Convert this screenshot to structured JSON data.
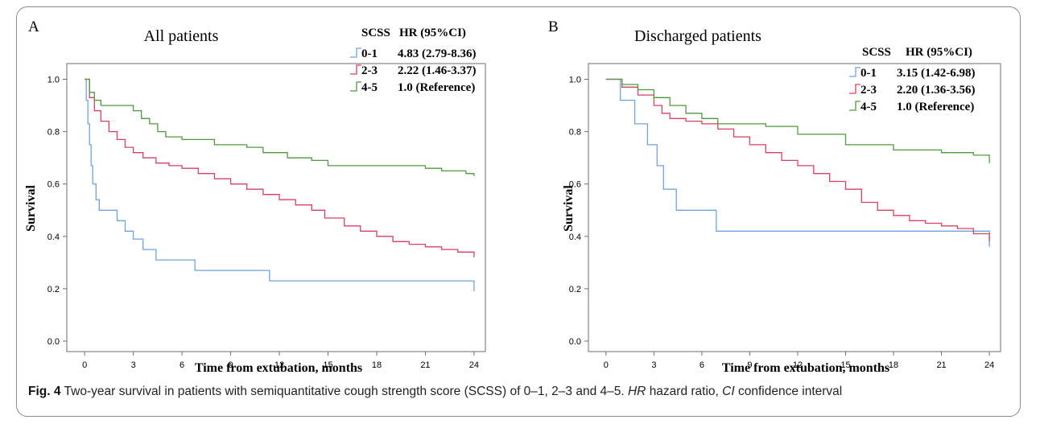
{
  "chart_data": [
    {
      "type": "line",
      "panel_label": "A",
      "title": "All patients",
      "xlabel": "Time from extubation, months",
      "ylabel": "Survival",
      "xlim": [
        -1,
        24.6
      ],
      "ylim": [
        -0.04,
        1.06
      ],
      "x_ticks": [
        0,
        3,
        6,
        9,
        12,
        15,
        18,
        21,
        24
      ],
      "y_ticks": [
        0.0,
        0.2,
        0.4,
        0.6,
        0.8,
        1.0
      ],
      "legend": {
        "placement": "top-right",
        "header_group": "SCSS",
        "header_hr": "HR (95%CI)"
      },
      "series": [
        {
          "name": "0-1",
          "hr": "4.83 (2.79-8.36)",
          "color": "#6fa3dc",
          "x": [
            0,
            0.1,
            0.2,
            0.3,
            0.4,
            0.5,
            0.7,
            0.9,
            1.3,
            2.0,
            2.5,
            3.0,
            3.6,
            4.4,
            6.8,
            11.4,
            24
          ],
          "y": [
            1.0,
            0.92,
            0.83,
            0.75,
            0.67,
            0.6,
            0.54,
            0.5,
            0.5,
            0.46,
            0.42,
            0.39,
            0.35,
            0.31,
            0.27,
            0.23,
            0.19
          ]
        },
        {
          "name": "2-3",
          "hr": "2.22 (1.46-3.37)",
          "color": "#d6425e",
          "x": [
            0,
            0.3,
            0.6,
            1.0,
            1.5,
            2.0,
            2.5,
            3.0,
            3.6,
            4.4,
            5.2,
            6.0,
            7.0,
            8.0,
            9.0,
            10.0,
            11.0,
            12.0,
            13.0,
            14.0,
            14.8,
            16.0,
            17.0,
            18.0,
            19.0,
            20.0,
            21.0,
            22.0,
            23.0,
            24
          ],
          "y": [
            1.0,
            0.93,
            0.88,
            0.84,
            0.8,
            0.77,
            0.74,
            0.72,
            0.7,
            0.68,
            0.67,
            0.66,
            0.64,
            0.62,
            0.6,
            0.58,
            0.56,
            0.54,
            0.52,
            0.5,
            0.47,
            0.44,
            0.42,
            0.4,
            0.38,
            0.37,
            0.36,
            0.35,
            0.34,
            0.32
          ]
        },
        {
          "name": "4-5",
          "hr": "1.0 (Reference)",
          "color": "#4f9a3c",
          "x": [
            0,
            0.3,
            0.6,
            1.0,
            3.0,
            3.5,
            4.0,
            4.5,
            5.0,
            6.0,
            8.0,
            10.0,
            11.0,
            12.5,
            14.0,
            15.0,
            18.0,
            21.0,
            22.0,
            23.5,
            24
          ],
          "y": [
            1.0,
            0.95,
            0.92,
            0.9,
            0.88,
            0.85,
            0.83,
            0.8,
            0.78,
            0.77,
            0.75,
            0.74,
            0.72,
            0.7,
            0.69,
            0.67,
            0.67,
            0.66,
            0.65,
            0.64,
            0.63
          ]
        }
      ]
    },
    {
      "type": "line",
      "panel_label": "B",
      "title": "Discharged patients",
      "xlabel": "Time from extubation, months",
      "ylabel": "Survival",
      "xlim": [
        -1,
        24.6
      ],
      "ylim": [
        -0.04,
        1.06
      ],
      "x_ticks": [
        0,
        3,
        6,
        9,
        12,
        15,
        18,
        21,
        24
      ],
      "y_ticks": [
        0.0,
        0.2,
        0.4,
        0.6,
        0.8,
        1.0
      ],
      "legend": {
        "placement": "top-right",
        "header_group": "SCSS",
        "header_hr": "HR (95%CI)"
      },
      "series": [
        {
          "name": "0-1",
          "hr": "3.15 (1.42-6.98)",
          "color": "#6fa3dc",
          "x": [
            0,
            0.9,
            1.8,
            2.6,
            3.2,
            3.6,
            4.4,
            6.9,
            24
          ],
          "y": [
            1.0,
            0.92,
            0.83,
            0.75,
            0.67,
            0.58,
            0.5,
            0.42,
            0.36
          ]
        },
        {
          "name": "2-3",
          "hr": "2.20 (1.36-3.56)",
          "color": "#d6425e",
          "x": [
            0,
            1.0,
            2.0,
            3.0,
            3.5,
            4.0,
            5.0,
            6.0,
            7.0,
            8.0,
            9.0,
            10.0,
            11.0,
            12.0,
            13.0,
            14.0,
            15.0,
            16.0,
            17.0,
            18.0,
            19.0,
            20.0,
            21.0,
            22.0,
            23.0,
            24
          ],
          "y": [
            1.0,
            0.97,
            0.94,
            0.9,
            0.87,
            0.85,
            0.84,
            0.83,
            0.81,
            0.78,
            0.75,
            0.72,
            0.69,
            0.67,
            0.64,
            0.61,
            0.58,
            0.53,
            0.5,
            0.48,
            0.46,
            0.45,
            0.44,
            0.43,
            0.41,
            0.38
          ]
        },
        {
          "name": "4-5",
          "hr": "1.0 (Reference)",
          "color": "#4f9a3c",
          "x": [
            0,
            1.0,
            2.0,
            3.0,
            4.0,
            5.0,
            6.0,
            7.0,
            10.0,
            12.0,
            15.0,
            18.0,
            21.0,
            23.0,
            24
          ],
          "y": [
            1.0,
            0.98,
            0.96,
            0.93,
            0.9,
            0.87,
            0.85,
            0.83,
            0.82,
            0.79,
            0.75,
            0.73,
            0.72,
            0.71,
            0.68
          ]
        }
      ]
    }
  ],
  "caption": {
    "label": "Fig. 4",
    "text": "Two-year survival in patients with semiquantitative cough strength score (SCSS) of 0–1, 2–3 and 4–5.",
    "hr_abbr": "HR",
    "hr_def": "hazard ratio,",
    "ci_abbr": "CI",
    "ci_def": "confidence interval"
  }
}
